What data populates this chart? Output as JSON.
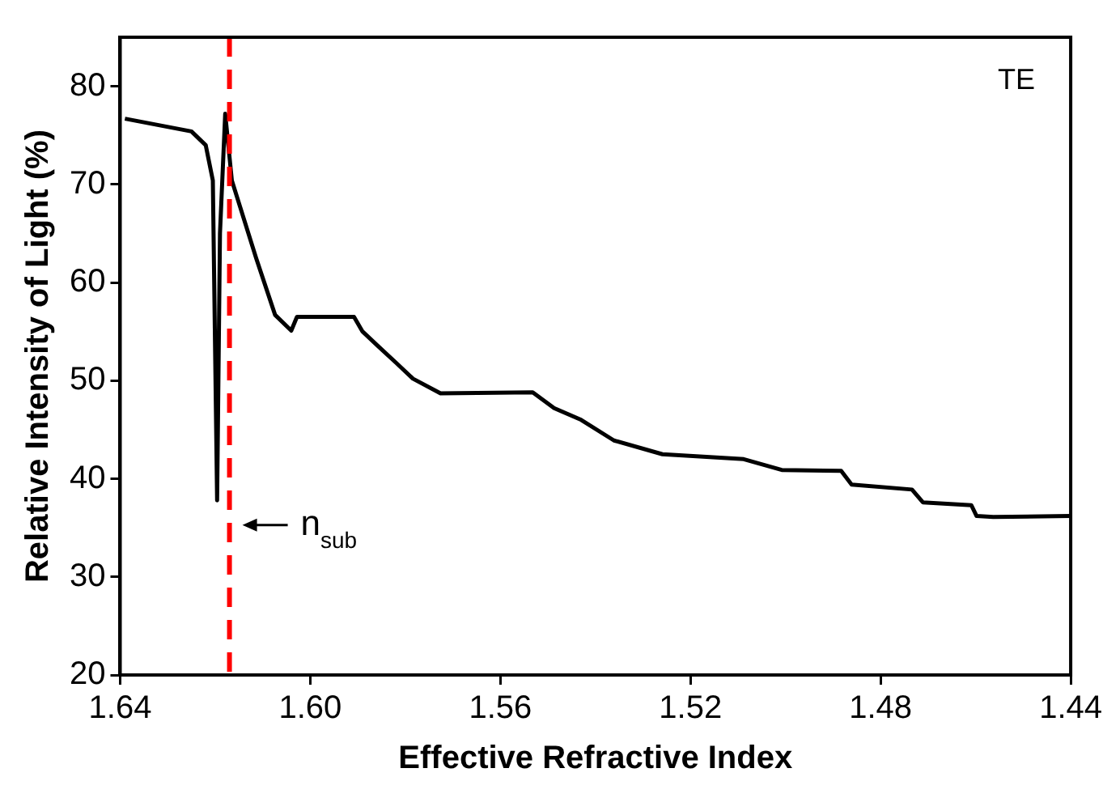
{
  "chart_data": {
    "type": "line",
    "xlabel": "Effective Refractive Index",
    "ylabel": "Relative Intensity of Light (%)",
    "annotations": [
      "TE"
    ],
    "x": [
      1.639,
      1.625,
      1.622,
      1.6205,
      1.6196,
      1.619,
      1.6179,
      1.6165,
      1.6114,
      1.6074,
      1.604,
      1.6028,
      1.5908,
      1.589,
      1.5857,
      1.5819,
      1.5784,
      1.5726,
      1.5532,
      1.5487,
      1.543,
      1.5361,
      1.5259,
      1.5088,
      1.5008,
      1.4883,
      1.4861,
      1.4734,
      1.4711,
      1.4609,
      1.4598,
      1.4563,
      1.44
    ],
    "series": [
      {
        "color": "#000000",
        "values": [
          76.7,
          75.4,
          74.0,
          70.4,
          37.8,
          65.0,
          77.2,
          70.4,
          62.5,
          56.7,
          55.1,
          56.5,
          56.5,
          55.0,
          53.5,
          51.8,
          50.2,
          48.7,
          48.8,
          47.2,
          46.0,
          43.9,
          42.5,
          42.0,
          40.9,
          40.8,
          39.4,
          38.9,
          37.6,
          37.3,
          36.2,
          36.1,
          36.2
        ]
      }
    ],
    "xlim": [
      1.64,
      1.44
    ],
    "xticks": [
      1.64,
      {
        "value": 1.6,
        "label": "1.60"
      },
      1.56,
      1.52,
      1.48,
      1.44
    ],
    "ylim": [
      20,
      85
    ],
    "yticks": [
      20,
      30,
      40,
      50,
      60,
      70,
      80
    ],
    "ref_lines": [
      {
        "axis": "x",
        "value": 1.617,
        "label": "n$_{sub}$",
        "color": "#ff0000",
        "line_style": "dashed"
      }
    ],
    "grid": false,
    "legend": false,
    "marker": "none",
    "line_style": "solid"
  }
}
